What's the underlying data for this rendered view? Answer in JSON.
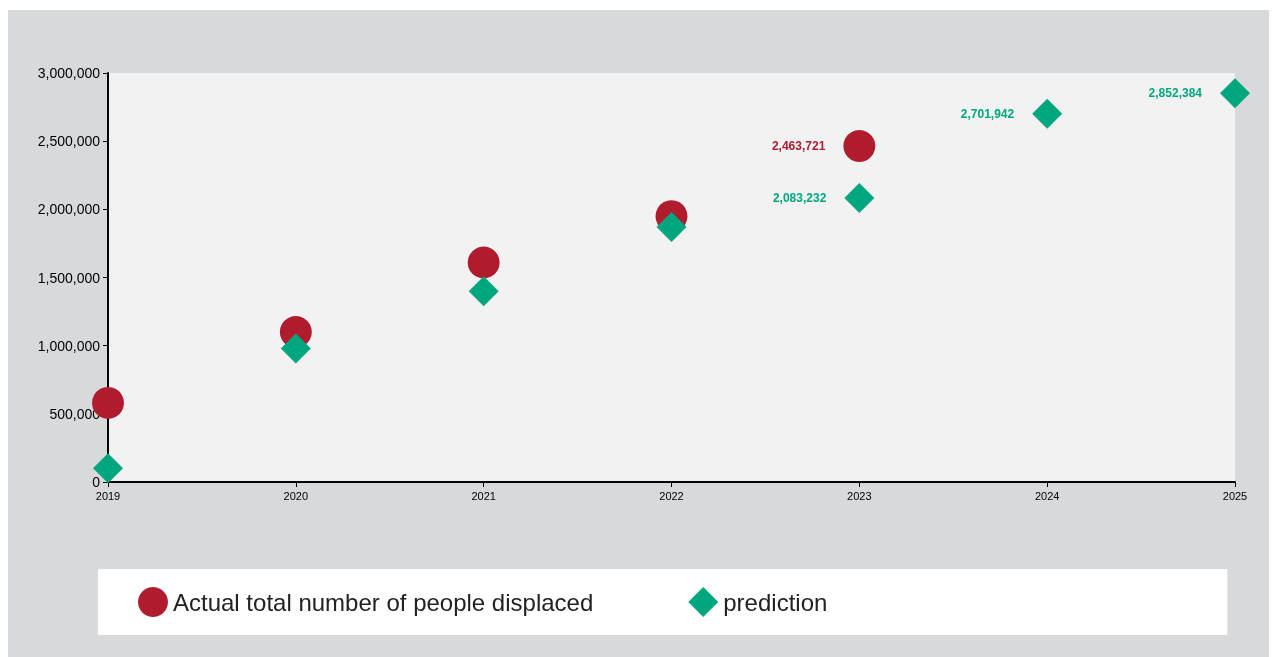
{
  "chart_data": {
    "type": "scatter",
    "xlim": [
      2019,
      2025
    ],
    "xticks": [
      2019,
      2020,
      2021,
      2022,
      2023,
      2024,
      2025
    ],
    "ylim": [
      0,
      3000000
    ],
    "yticks": [
      0,
      {
        "value": 500000,
        "label": "500,000"
      },
      {
        "value": 1000000,
        "label": "1,000,000"
      },
      {
        "value": 1500000,
        "label": "1,500,000"
      },
      {
        "value": 2000000,
        "label": "2,000,000"
      },
      {
        "value": 2500000,
        "label": "2,500,000"
      },
      {
        "value": 3000000,
        "label": "3,000,000"
      }
    ],
    "grid": false,
    "legend": "bottom",
    "series": [
      {
        "name": "Actual total number of people displaced",
        "color": "#b01c2e",
        "marker": "circle",
        "x": [
          2019,
          2020,
          2021,
          2022,
          2023
        ],
        "values": [
          580000,
          1100000,
          1610000,
          1950000,
          2463721
        ],
        "value_labels": [
          null,
          null,
          null,
          null,
          "2,463,721"
        ]
      },
      {
        "name": "prediction",
        "color": "#00a77e",
        "marker": "diamond",
        "x": [
          2019,
          2020,
          2021,
          2022,
          2023,
          2024,
          2025
        ],
        "values": [
          100000,
          980000,
          1400000,
          1870000,
          2083232,
          2701942,
          2852384
        ],
        "value_labels": [
          null,
          null,
          null,
          null,
          "2,083,232",
          "2,701,942",
          "2,852,384"
        ]
      }
    ]
  }
}
